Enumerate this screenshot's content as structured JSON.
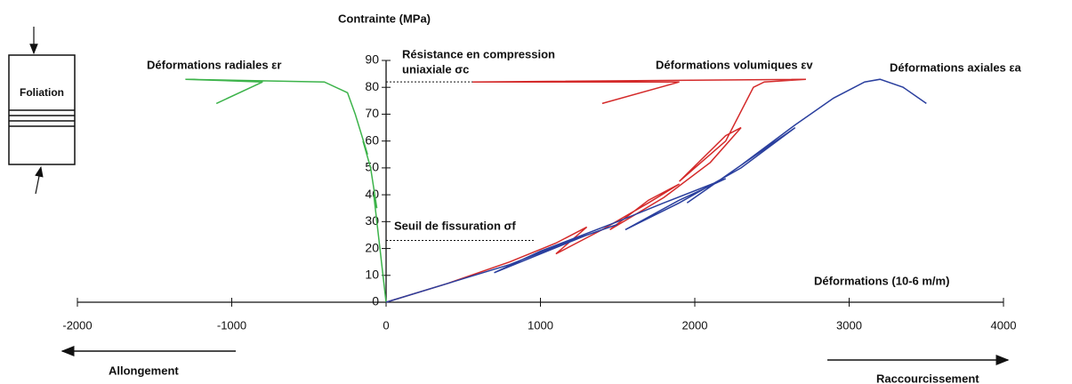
{
  "chart_data": {
    "type": "line",
    "title": "Contrainte (MPa)",
    "x_label": "Déformations (10-6 m/m)",
    "xlim": [
      -2000,
      4000
    ],
    "ylim": [
      0,
      90
    ],
    "xticks": [
      -2000,
      -1000,
      0,
      1000,
      2000,
      3000,
      4000
    ],
    "yticks": [
      0,
      10,
      20,
      30,
      40,
      50,
      60,
      70,
      80,
      90
    ],
    "series": [
      {
        "name": "Déformations radiales εr",
        "color": "#3cb34a",
        "x": [
          0,
          -20,
          -40,
          -30,
          -60,
          -80,
          -60,
          -100,
          -150,
          -120,
          -200,
          -250,
          -400,
          -1300,
          -800,
          -1100
        ],
        "values": [
          0,
          10,
          20,
          15,
          30,
          40,
          35,
          50,
          60,
          55,
          70,
          78,
          82,
          83,
          82,
          74
        ]
      },
      {
        "name": "Déformations volumiques εv",
        "color": "#d42a2a",
        "x": [
          0,
          400,
          800,
          1100,
          1300,
          1100,
          1400,
          1700,
          1900,
          1700,
          1450,
          1800,
          2100,
          2300,
          2200,
          1900,
          2200,
          2380,
          2450,
          2720,
          560,
          1900,
          1400
        ],
        "values": [
          0,
          7,
          15,
          22,
          28,
          18,
          27,
          37,
          44,
          38,
          27,
          39,
          52,
          65,
          62,
          45,
          60,
          80,
          82,
          83,
          82,
          82,
          74
        ]
      },
      {
        "name": "Déformations axiales εa",
        "color": "#2a3f9e",
        "x": [
          0,
          400,
          800,
          1200,
          1500,
          1300,
          700,
          1000,
          1500,
          1800,
          2200,
          1900,
          1550,
          1900,
          2300,
          2650,
          2400,
          1950,
          2300,
          2650,
          2900,
          3100,
          3200,
          3350,
          3500
        ],
        "values": [
          0,
          7,
          14,
          23,
          29,
          25,
          11,
          19,
          30,
          37,
          46,
          38,
          27,
          37,
          50,
          65,
          55,
          37,
          51,
          66,
          76,
          82,
          83,
          80,
          74
        ]
      }
    ],
    "reference_lines": [
      {
        "label_lines": [
          "Résistance en compression",
          "uniaxiale  σc"
        ],
        "value": 82
      },
      {
        "label_lines": [
          "Seuil de fissuration σf"
        ],
        "value": 23
      }
    ],
    "direction_labels": [
      "Allongement",
      "Raccourcissement"
    ],
    "specimen_label": "Foliation"
  }
}
